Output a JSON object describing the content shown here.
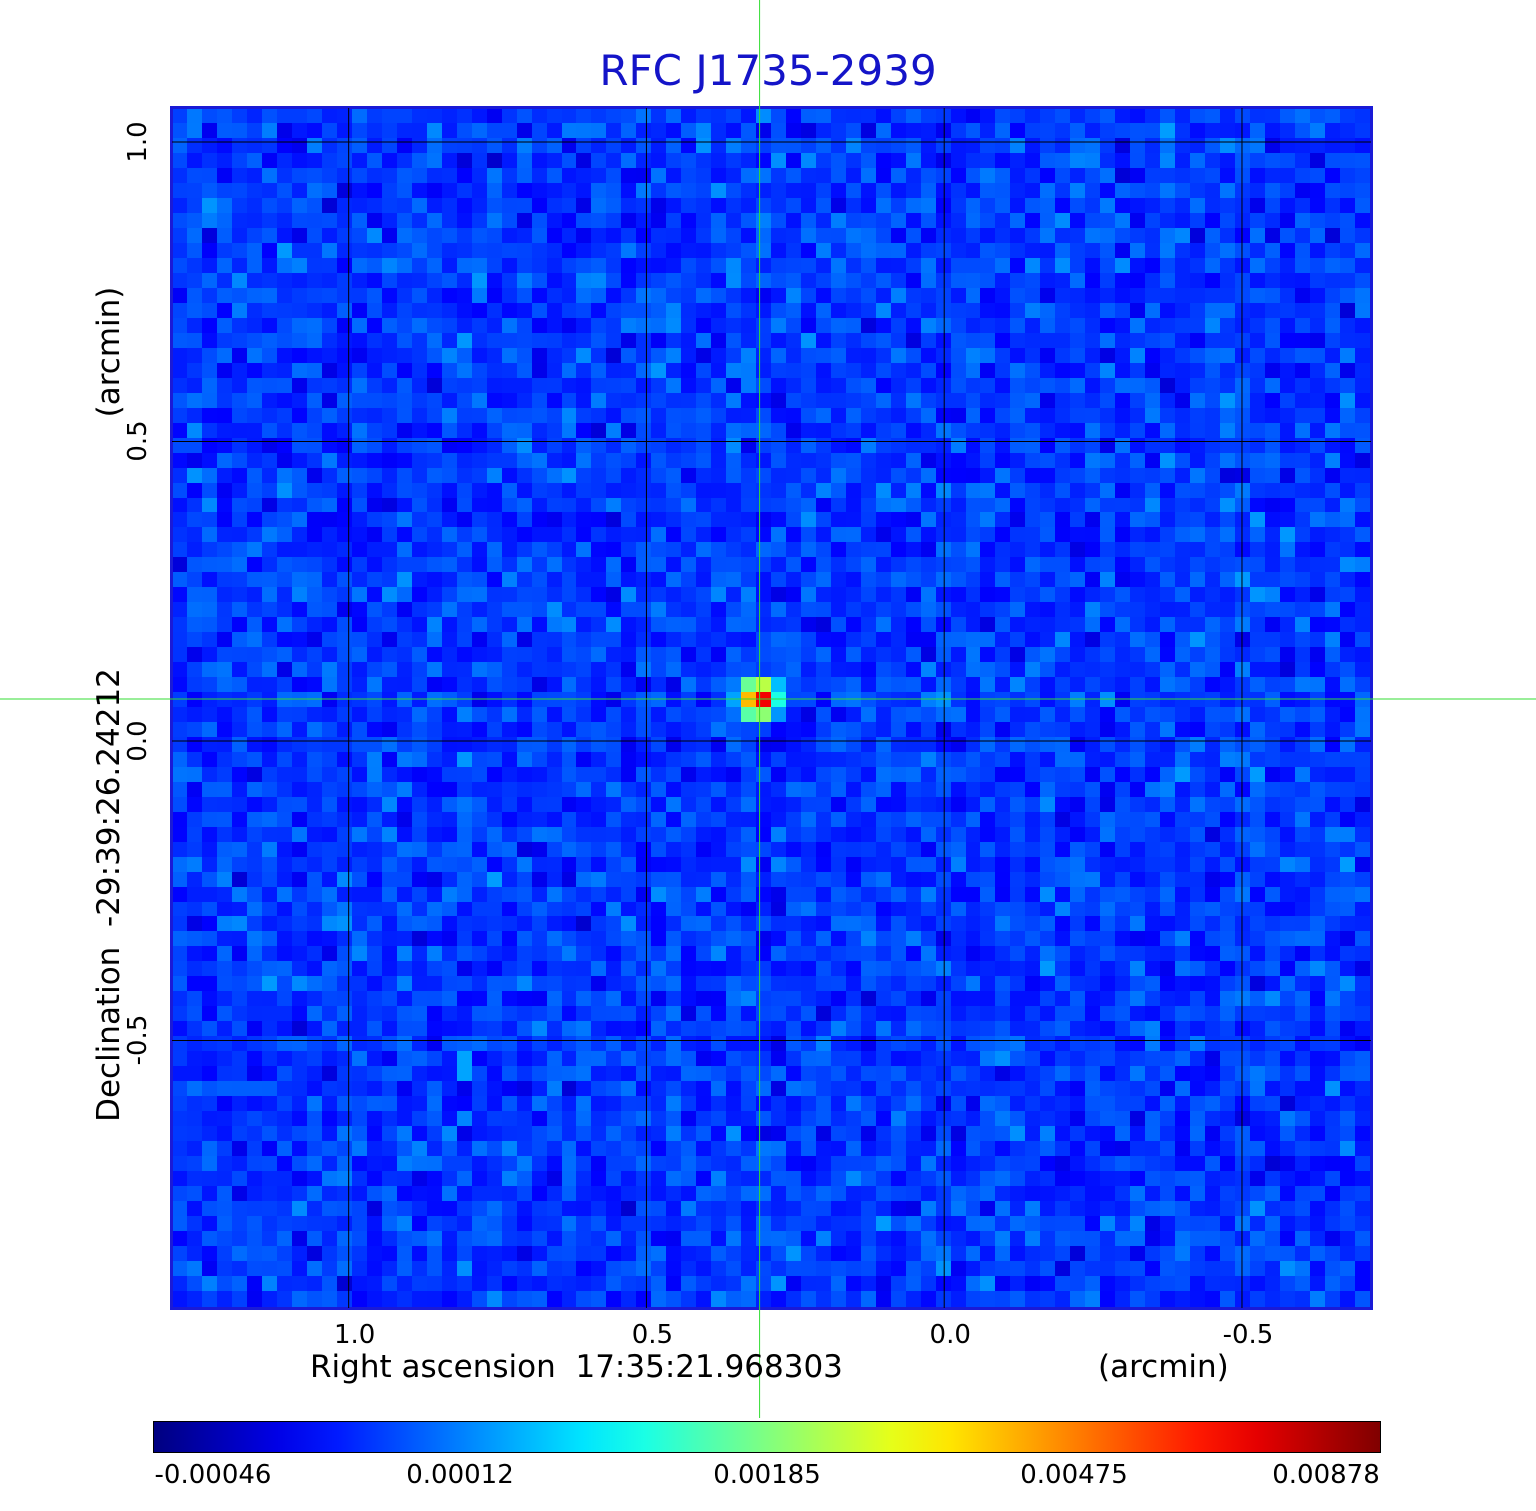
{
  "chart_data": {
    "type": "heatmap",
    "title": "RFC J1735-2939",
    "xlabel": "Right ascension  17:35:21.968303",
    "x_unit": "(arcmin)",
    "ylabel": "Declination  -29:39:26.24212",
    "y_unit": "(arcmin)",
    "x_range": [
      1.3,
      -0.72
    ],
    "y_range": [
      -0.95,
      1.06
    ],
    "x_ticks": [
      "1.0",
      "0.5",
      "0.0",
      "-0.5"
    ],
    "y_ticks": [
      "1.0",
      "0.5",
      "0.0",
      "-0.5"
    ],
    "grid": true,
    "source": {
      "x": 0.31,
      "y": 0.07,
      "peak": 0.00878
    },
    "colorbar": {
      "ticks": [
        "-0.00046",
        "0.00012",
        "0.00185",
        "0.00475",
        "0.00878"
      ],
      "colormap": "jet"
    },
    "background_level": 0.00012
  },
  "colors": {
    "title": "#1414c8",
    "frame": "#1a1ad6",
    "crosshair": "#33dd33",
    "grid": "#000000"
  }
}
